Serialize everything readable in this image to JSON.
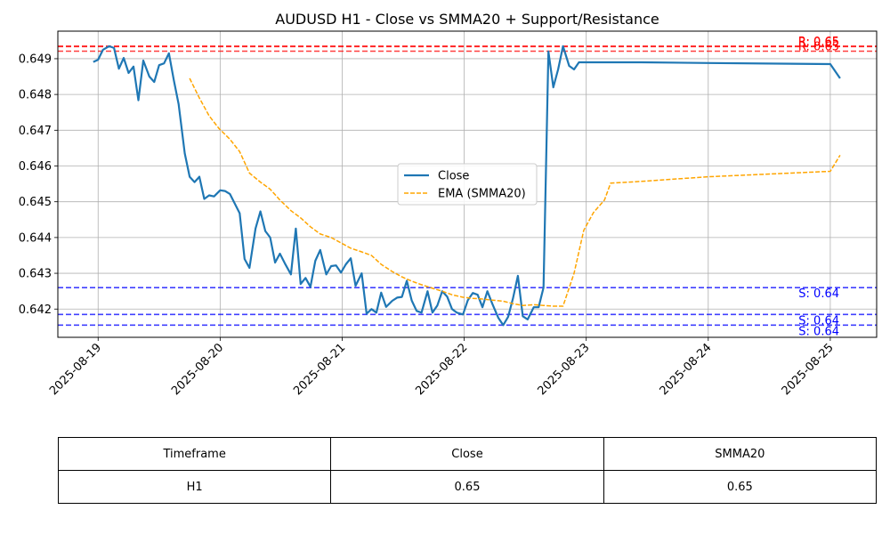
{
  "chart_data": {
    "type": "line",
    "title": "AUDUSD H1 - Close vs SMMA20 + Support/Resistance",
    "xlabel": "",
    "ylabel": "",
    "x_ticks": [
      "2025-08-19",
      "2025-08-20",
      "2025-08-21",
      "2025-08-22",
      "2025-08-23",
      "2025-08-24",
      "2025-08-25"
    ],
    "y_ticks": [
      "0.642",
      "0.643",
      "0.644",
      "0.645",
      "0.646",
      "0.647",
      "0.648",
      "0.649"
    ],
    "xlim": [
      -0.33,
      6.38
    ],
    "ylim": [
      0.64121,
      0.64977
    ],
    "grid": true,
    "legend_position": "center-right",
    "series": [
      {
        "name": "Close",
        "color": "#1f77b4",
        "style": "solid",
        "x": [
          -0.04,
          0.0,
          0.04,
          0.09,
          0.13,
          0.17,
          0.21,
          0.25,
          0.29,
          0.33,
          0.37,
          0.42,
          0.46,
          0.5,
          0.54,
          0.58,
          0.62,
          0.66,
          0.71,
          0.75,
          0.79,
          0.83,
          0.87,
          0.91,
          0.95,
          1.0,
          1.04,
          1.08,
          1.12,
          1.16,
          1.2,
          1.24,
          1.29,
          1.33,
          1.37,
          1.41,
          1.45,
          1.49,
          1.53,
          1.58,
          1.62,
          1.66,
          1.7,
          1.74,
          1.78,
          1.82,
          1.87,
          1.91,
          1.95,
          1.99,
          2.03,
          2.07,
          2.11,
          2.16,
          2.2,
          2.24,
          2.28,
          2.32,
          2.36,
          2.41,
          2.45,
          2.49,
          2.53,
          2.57,
          2.61,
          2.65,
          2.7,
          2.74,
          2.78,
          2.82,
          2.86,
          2.9,
          2.94,
          2.99,
          3.03,
          3.07,
          3.11,
          3.15,
          3.19,
          3.23,
          3.28,
          3.32,
          3.36,
          3.4,
          3.44,
          3.48,
          3.52,
          3.57,
          3.61,
          3.65,
          3.69,
          3.73,
          3.77,
          3.81,
          3.86,
          3.9,
          3.94,
          3.98,
          4.02,
          4.06,
          4.1,
          4.15,
          4.2,
          4.25,
          4.3,
          4.35,
          4.4,
          4.45,
          5.0,
          6.0,
          6.08
        ],
        "values": [
          0.64891,
          0.64897,
          0.64925,
          0.64935,
          0.6493,
          0.64872,
          0.64902,
          0.6486,
          0.64878,
          0.64784,
          0.64895,
          0.6485,
          0.64835,
          0.64882,
          0.64887,
          0.64915,
          0.6484,
          0.64773,
          0.64635,
          0.6457,
          0.64555,
          0.6457,
          0.64508,
          0.64518,
          0.64515,
          0.64532,
          0.6453,
          0.64522,
          0.64495,
          0.64468,
          0.6434,
          0.64315,
          0.64425,
          0.64473,
          0.64418,
          0.644,
          0.6433,
          0.64355,
          0.64328,
          0.64297,
          0.64425,
          0.6427,
          0.64287,
          0.64262,
          0.64335,
          0.64365,
          0.64297,
          0.6432,
          0.64322,
          0.64302,
          0.64325,
          0.64342,
          0.64265,
          0.643,
          0.64187,
          0.642,
          0.6419,
          0.64246,
          0.64206,
          0.64223,
          0.64232,
          0.64234,
          0.64279,
          0.64224,
          0.64195,
          0.6419,
          0.6425,
          0.6419,
          0.6421,
          0.6425,
          0.64235,
          0.642,
          0.6419,
          0.64185,
          0.64225,
          0.64245,
          0.6424,
          0.64205,
          0.6425,
          0.64215,
          0.64175,
          0.64155,
          0.64178,
          0.6423,
          0.64293,
          0.6418,
          0.64171,
          0.64205,
          0.64205,
          0.6426,
          0.6492,
          0.6482,
          0.6487,
          0.64935,
          0.6488,
          0.6487,
          0.6489,
          0.6489,
          0.6489,
          0.6489,
          0.6489,
          0.6489,
          0.6489,
          0.6489,
          0.6489,
          0.6489,
          0.6489,
          0.6489,
          0.64888,
          0.64885,
          0.64845
        ]
      },
      {
        "name": "EMA (SMMA20)",
        "color": "#ffa500",
        "style": "dashed",
        "x": [
          0.75,
          0.83,
          0.91,
          0.99,
          1.08,
          1.16,
          1.24,
          1.33,
          1.41,
          1.49,
          1.58,
          1.66,
          1.74,
          1.82,
          1.91,
          1.99,
          2.07,
          2.16,
          2.24,
          2.32,
          2.41,
          2.49,
          2.57,
          2.65,
          2.74,
          2.82,
          2.9,
          2.99,
          3.07,
          3.15,
          3.23,
          3.32,
          3.4,
          3.48,
          3.57,
          3.65,
          3.73,
          3.81,
          3.9,
          3.98,
          4.06,
          4.15,
          4.2,
          4.25,
          4.3,
          4.35,
          4.4,
          4.45,
          5.0,
          6.0,
          6.08
        ],
        "values": [
          0.64845,
          0.6479,
          0.6474,
          0.64705,
          0.64675,
          0.6464,
          0.6458,
          0.64555,
          0.64535,
          0.64505,
          0.64475,
          0.64455,
          0.6443,
          0.6441,
          0.644,
          0.64385,
          0.6437,
          0.6436,
          0.6435,
          0.64325,
          0.64305,
          0.6429,
          0.64278,
          0.64268,
          0.64258,
          0.6425,
          0.6424,
          0.64233,
          0.6423,
          0.64228,
          0.64225,
          0.64222,
          0.64215,
          0.6421,
          0.64212,
          0.6421,
          0.64208,
          0.64208,
          0.643,
          0.6442,
          0.6447,
          0.64505,
          0.64552,
          0.64553,
          0.64554,
          0.64555,
          0.64556,
          0.64557,
          0.6457,
          0.64585,
          0.6463
        ]
      }
    ],
    "resistance": {
      "color": "#ff0000",
      "levels": [
        0.64935,
        0.64934,
        0.64921
      ],
      "labels": [
        "R: 0.65",
        "R: 0.65",
        "R: 0.65"
      ]
    },
    "support": {
      "color": "#0000ff",
      "levels": [
        0.6426,
        0.64185,
        0.64155
      ],
      "labels": [
        "S: 0.64",
        "S: 0.64",
        "S: 0.64"
      ]
    }
  },
  "table": {
    "headers": [
      "Timeframe",
      "Close",
      "SMMA20"
    ],
    "row": [
      "H1",
      "0.65",
      "0.65"
    ]
  }
}
